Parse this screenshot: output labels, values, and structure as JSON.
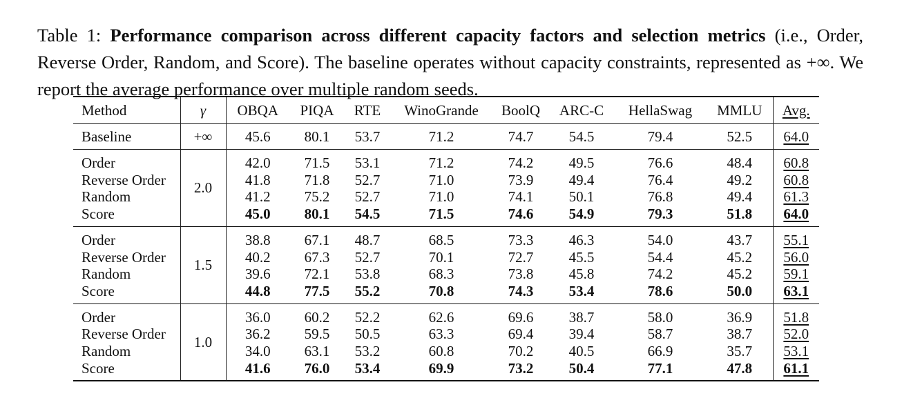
{
  "caption": {
    "prefix": "Table 1: ",
    "bold": "Performance comparison across different capacity factors and selection metrics",
    "rest": " (i.e., Order, Reverse Order, Random, and Score). The baseline operates without capacity constraints, represented as +∞. We report the average performance over multiple random seeds."
  },
  "table": {
    "headers": [
      "Method",
      "γ",
      "OBQA",
      "PIQA",
      "RTE",
      "WinoGrande",
      "BoolQ",
      "ARC-C",
      "HellaSwag",
      "MMLU",
      "Avg."
    ],
    "baseline": {
      "method": "Baseline",
      "gamma": "+∞",
      "values": [
        "45.6",
        "80.1",
        "53.7",
        "71.2",
        "74.7",
        "54.5",
        "79.4",
        "52.5"
      ],
      "avg": "64.0"
    },
    "groups": [
      {
        "gamma": "2.0",
        "rows": [
          {
            "method": "Order",
            "values": [
              "42.0",
              "71.5",
              "53.1",
              "71.2",
              "74.2",
              "49.5",
              "76.6",
              "48.4"
            ],
            "avg": "60.8"
          },
          {
            "method": "Reverse Order",
            "values": [
              "41.8",
              "71.8",
              "52.7",
              "71.0",
              "73.9",
              "49.4",
              "76.4",
              "49.2"
            ],
            "avg": "60.8"
          },
          {
            "method": "Random",
            "values": [
              "41.2",
              "75.2",
              "52.7",
              "71.0",
              "74.1",
              "50.1",
              "76.8",
              "49.4"
            ],
            "avg": "61.3"
          },
          {
            "method": "Score",
            "values": [
              "45.0",
              "80.1",
              "54.5",
              "71.5",
              "74.6",
              "54.9",
              "79.3",
              "51.8"
            ],
            "avg": "64.0"
          }
        ]
      },
      {
        "gamma": "1.5",
        "rows": [
          {
            "method": "Order",
            "values": [
              "38.8",
              "67.1",
              "48.7",
              "68.5",
              "73.3",
              "46.3",
              "54.0",
              "43.7"
            ],
            "avg": "55.1"
          },
          {
            "method": "Reverse Order",
            "values": [
              "40.2",
              "67.3",
              "52.7",
              "70.1",
              "72.7",
              "45.5",
              "54.4",
              "45.2"
            ],
            "avg": "56.0"
          },
          {
            "method": "Random",
            "values": [
              "39.6",
              "72.1",
              "53.8",
              "68.3",
              "73.8",
              "45.8",
              "74.2",
              "45.2"
            ],
            "avg": "59.1"
          },
          {
            "method": "Score",
            "values": [
              "44.8",
              "77.5",
              "55.2",
              "70.8",
              "74.3",
              "53.4",
              "78.6",
              "50.0"
            ],
            "avg": "63.1"
          }
        ]
      },
      {
        "gamma": "1.0",
        "rows": [
          {
            "method": "Order",
            "values": [
              "36.0",
              "60.2",
              "52.2",
              "62.6",
              "69.6",
              "38.7",
              "58.0",
              "36.9"
            ],
            "avg": "51.8"
          },
          {
            "method": "Reverse Order",
            "values": [
              "36.2",
              "59.5",
              "50.5",
              "63.3",
              "69.4",
              "39.4",
              "58.7",
              "38.7"
            ],
            "avg": "52.0"
          },
          {
            "method": "Random",
            "values": [
              "34.0",
              "63.1",
              "53.2",
              "60.8",
              "70.2",
              "40.5",
              "66.9",
              "35.7"
            ],
            "avg": "53.1"
          },
          {
            "method": "Score",
            "values": [
              "41.6",
              "76.0",
              "53.4",
              "69.9",
              "73.2",
              "50.4",
              "77.1",
              "47.8"
            ],
            "avg": "61.1"
          }
        ]
      }
    ]
  }
}
